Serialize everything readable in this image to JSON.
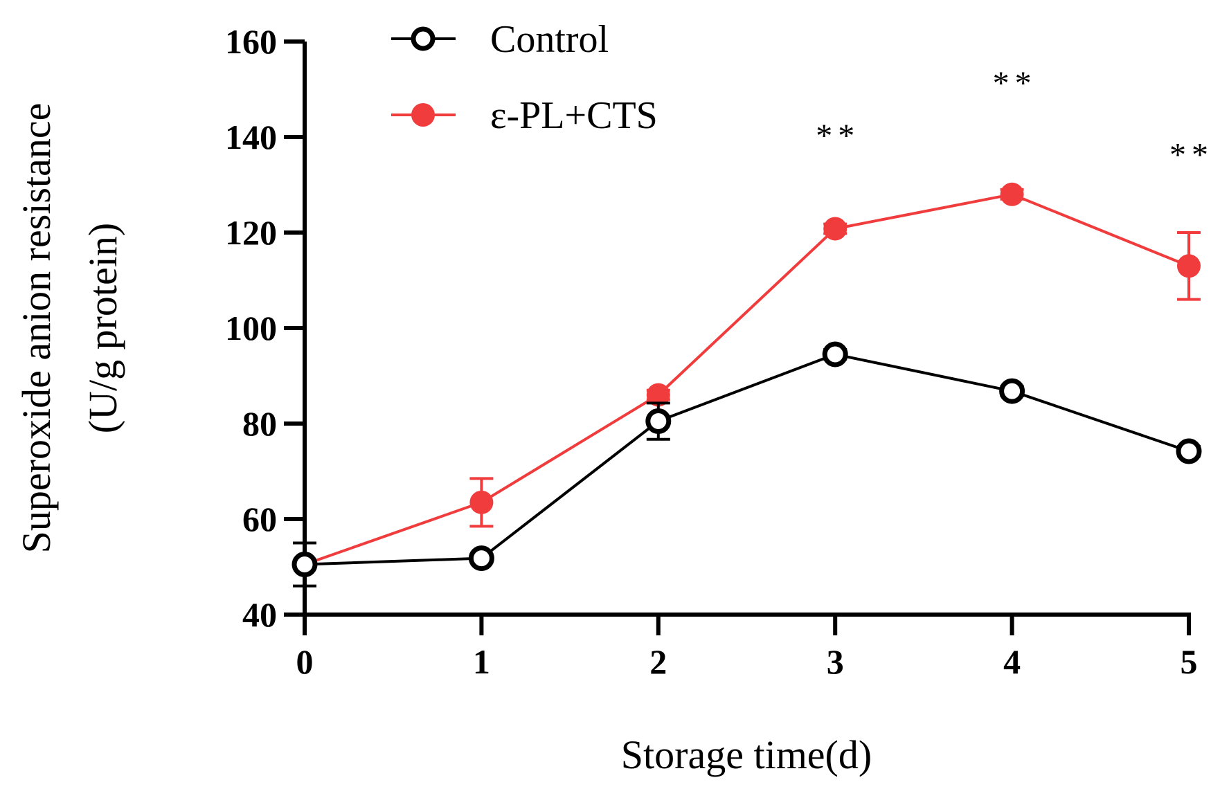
{
  "chart_data": {
    "type": "line",
    "title": "",
    "xlabel": "Storage time(d)",
    "ylabel_line1": "Superoxide anion resistance",
    "ylabel_line2": "(U/g protein)",
    "x": [
      0,
      1,
      2,
      3,
      4,
      5
    ],
    "x_tick_labels": [
      "0",
      "1",
      "2",
      "3",
      "4",
      "5"
    ],
    "ylim": [
      40,
      160
    ],
    "y_ticks": [
      40,
      60,
      80,
      100,
      120,
      140,
      160
    ],
    "y_tick_labels": [
      "40",
      "60",
      "80",
      "100",
      "120",
      "140",
      "160"
    ],
    "grid": false,
    "legend_position": "top-left",
    "series": [
      {
        "name": "Control",
        "color": "#000000",
        "marker": "open-circle",
        "values": [
          50.5,
          51.8,
          80.5,
          94.5,
          86.8,
          74.2
        ],
        "errors": [
          4.5,
          0.8,
          3.8,
          1.0,
          1.0,
          1.0
        ]
      },
      {
        "name": "ε-PL+CTS",
        "color": "#f03c3c",
        "marker": "filled-circle",
        "values": [
          50.5,
          63.5,
          86.0,
          120.8,
          128.0,
          113.0
        ],
        "errors": [
          0.5,
          5.0,
          1.0,
          1.0,
          1.0,
          7.0
        ]
      }
    ],
    "annotations": [
      {
        "x": 3,
        "label": "**",
        "y": 138
      },
      {
        "x": 4,
        "label": "**",
        "y": 149
      },
      {
        "x": 5,
        "label": "**",
        "y": 134
      }
    ]
  }
}
